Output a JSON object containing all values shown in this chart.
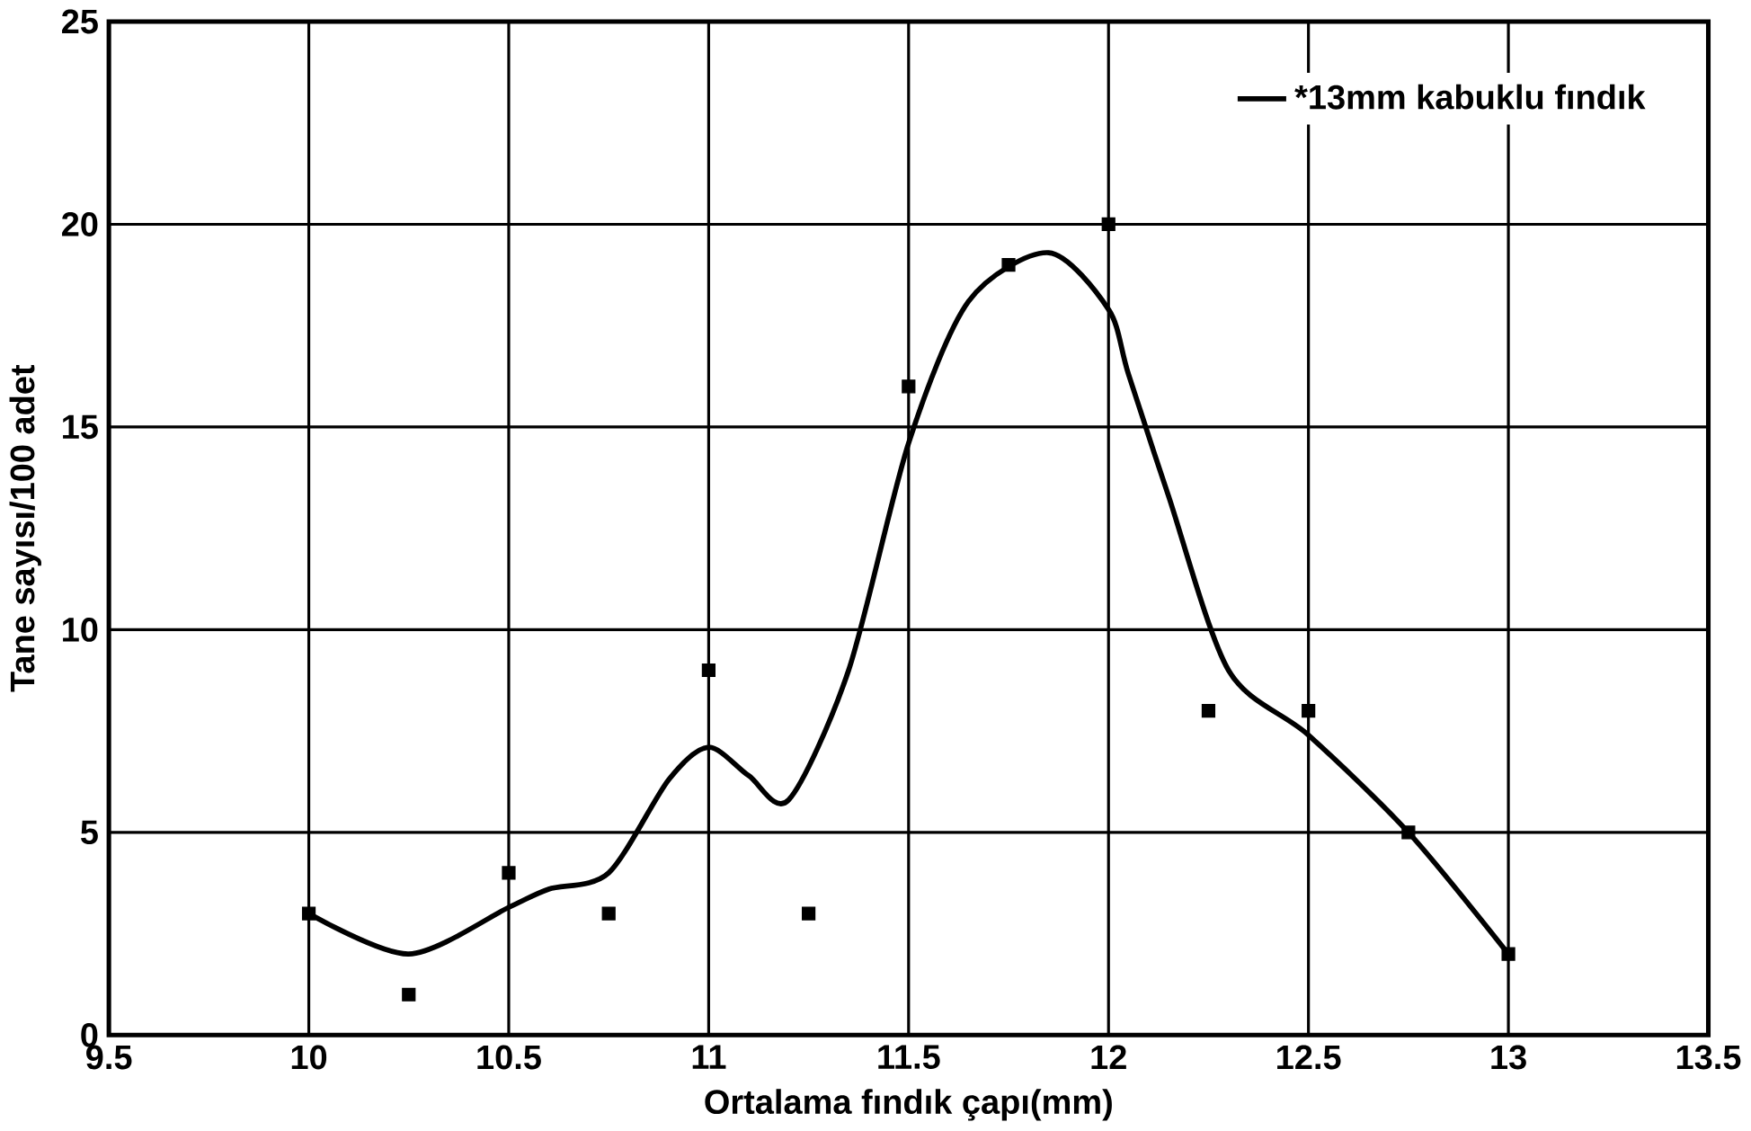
{
  "chart_data": {
    "type": "scatter",
    "xlabel": "Ortalama fındık çapı(mm)",
    "ylabel": "Tane sayısı/100 adet",
    "xlim": [
      9.5,
      13.5
    ],
    "ylim": [
      0,
      25
    ],
    "xticks": [
      9.5,
      10,
      10.5,
      11,
      11.5,
      12,
      12.5,
      13,
      13.5
    ],
    "yticks": [
      0,
      5,
      10,
      15,
      20,
      25
    ],
    "grid": true,
    "legend": "top right",
    "series": [
      {
        "marker": "square",
        "color": "#000000",
        "x": [
          10,
          10.25,
          10.5,
          10.75,
          11,
          11.25,
          11.5,
          11.75,
          12,
          12.25,
          12.5,
          12.75,
          13
        ],
        "values": [
          3,
          1,
          4,
          3,
          9,
          3,
          16,
          19,
          20,
          8,
          8,
          5,
          2
        ]
      },
      {
        "type": "line",
        "name": "*13mm kabuklu fındık",
        "marker": "none",
        "line_style": "solid",
        "color": "#000000",
        "x": [
          10,
          10.25,
          10.5,
          10.6,
          10.75,
          10.9,
          11,
          11.1,
          11.2,
          11.35,
          11.5,
          11.65,
          11.85,
          12,
          12.05,
          12.15,
          12.3,
          12.5,
          12.75,
          13
        ],
        "values": [
          3.0,
          2.0,
          3.15,
          3.6,
          4.0,
          6.3,
          7.1,
          6.4,
          5.8,
          9.0,
          14.6,
          18.1,
          19.3,
          17.9,
          16.3,
          13.3,
          9.0,
          7.4,
          5.0,
          2.0
        ]
      }
    ]
  }
}
